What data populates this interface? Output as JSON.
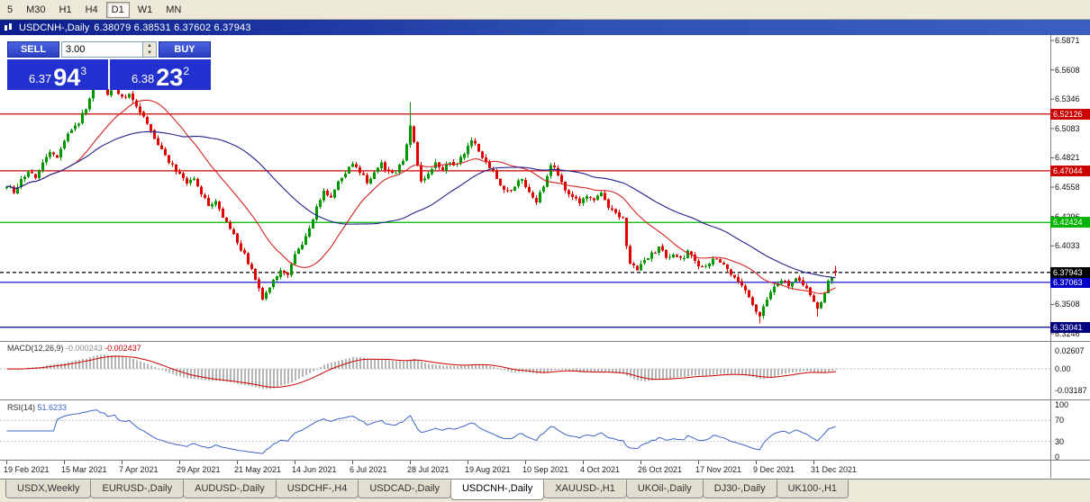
{
  "toolbar": {
    "timeframes": [
      "5",
      "M30",
      "H1",
      "H4",
      "D1",
      "W1",
      "MN"
    ],
    "active": "D1"
  },
  "chart_window": {
    "title": "USDCNH-,Daily",
    "ohlc": "6.38079 6.38531 6.37602 6.37943"
  },
  "trade_panel": {
    "sell_label": "SELL",
    "buy_label": "BUY",
    "volume": "3.00",
    "sell_price_head": "6.37",
    "sell_price_big": "94",
    "sell_price_sup": "3",
    "buy_price_head": "6.38",
    "buy_price_big": "23",
    "buy_price_sup": "2"
  },
  "indicators": {
    "macd": {
      "title": "MACD(12,26,9)",
      "value_main": "-0.000243",
      "value_signal": "-0.002437",
      "axis": [
        {
          "label": "0.02607",
          "value": 0.02607
        },
        {
          "label": "0.00",
          "value": 0
        },
        {
          "label": "-0.03187",
          "value": -0.03187
        }
      ]
    },
    "rsi": {
      "title": "RSI(14)",
      "value": "51.6233",
      "axis": [
        {
          "label": "100",
          "value": 100
        },
        {
          "label": "70",
          "value": 70
        },
        {
          "label": "30",
          "value": 30
        },
        {
          "label": "0",
          "value": 0
        }
      ],
      "levels": [
        70,
        30
      ]
    }
  },
  "chart_data": {
    "type": "candlestick",
    "symbol": "USDCNH-",
    "timeframe": "Daily",
    "bar_count": 231,
    "y_axis": [
      6.5871,
      6.5608,
      6.5346,
      6.5083,
      6.4821,
      6.4558,
      6.4296,
      6.4033,
      6.3771,
      6.3508,
      6.3246
    ],
    "x_axis": [
      {
        "bar": 0,
        "label": "19 Feb 2021"
      },
      {
        "bar": 16,
        "label": "15 Mar 2021"
      },
      {
        "bar": 32,
        "label": "7 Apr 2021"
      },
      {
        "bar": 48,
        "label": "29 Apr 2021"
      },
      {
        "bar": 64,
        "label": "21 May 2021"
      },
      {
        "bar": 80,
        "label": "14 Jun 2021"
      },
      {
        "bar": 96,
        "label": "6 Jul 2021"
      },
      {
        "bar": 112,
        "label": "28 Jul 2021"
      },
      {
        "bar": 128,
        "label": "19 Aug 2021"
      },
      {
        "bar": 144,
        "label": "10 Sep 2021"
      },
      {
        "bar": 160,
        "label": "4 Oct 2021"
      },
      {
        "bar": 176,
        "label": "26 Oct 2021"
      },
      {
        "bar": 192,
        "label": "17 Nov 2021"
      },
      {
        "bar": 208,
        "label": "9 Dec 2021"
      },
      {
        "bar": 224,
        "label": "31 Dec 2021"
      }
    ],
    "levels": [
      {
        "price": 6.52126,
        "label": "6.52126",
        "color": "#cc0000",
        "style": "solid"
      },
      {
        "price": 6.47044,
        "label": "6.47044",
        "color": "#cc0000",
        "style": "solid"
      },
      {
        "price": 6.42424,
        "label": "6.42424",
        "color": "#00b400",
        "style": "solid"
      },
      {
        "price": 6.37063,
        "label": "6.37063",
        "color": "#0000c8",
        "style": "solid"
      },
      {
        "price": 6.33041,
        "label": "6.33041",
        "color": "#000080",
        "style": "solid"
      },
      {
        "price": 6.37943,
        "label": "6.37943",
        "color": "#000000",
        "style": "dashed",
        "current": true
      }
    ],
    "price_path": [
      [
        0,
        6.458
      ],
      [
        2,
        6.451
      ],
      [
        4,
        6.462
      ],
      [
        6,
        6.469
      ],
      [
        8,
        6.465
      ],
      [
        10,
        6.477
      ],
      [
        12,
        6.488
      ],
      [
        14,
        6.483
      ],
      [
        16,
        6.497
      ],
      [
        18,
        6.509
      ],
      [
        20,
        6.514
      ],
      [
        22,
        6.527
      ],
      [
        24,
        6.543
      ],
      [
        25,
        6.55
      ],
      [
        26,
        6.545
      ],
      [
        28,
        6.54
      ],
      [
        30,
        6.547
      ],
      [
        32,
        6.535
      ],
      [
        34,
        6.541
      ],
      [
        36,
        6.528
      ],
      [
        38,
        6.518
      ],
      [
        40,
        6.505
      ],
      [
        42,
        6.495
      ],
      [
        44,
        6.483
      ],
      [
        46,
        6.475
      ],
      [
        48,
        6.467
      ],
      [
        50,
        6.459
      ],
      [
        52,
        6.464
      ],
      [
        54,
        6.45
      ],
      [
        56,
        6.44
      ],
      [
        58,
        6.445
      ],
      [
        60,
        6.43
      ],
      [
        62,
        6.418
      ],
      [
        64,
        6.406
      ],
      [
        66,
        6.395
      ],
      [
        68,
        6.383
      ],
      [
        70,
        6.366
      ],
      [
        71,
        6.357
      ],
      [
        72,
        6.362
      ],
      [
        74,
        6.371
      ],
      [
        76,
        6.383
      ],
      [
        78,
        6.377
      ],
      [
        80,
        6.396
      ],
      [
        82,
        6.405
      ],
      [
        84,
        6.418
      ],
      [
        86,
        6.438
      ],
      [
        88,
        6.452
      ],
      [
        90,
        6.446
      ],
      [
        92,
        6.462
      ],
      [
        94,
        6.468
      ],
      [
        96,
        6.477
      ],
      [
        98,
        6.469
      ],
      [
        100,
        6.461
      ],
      [
        102,
        6.469
      ],
      [
        104,
        6.476
      ],
      [
        106,
        6.468
      ],
      [
        108,
        6.468
      ],
      [
        110,
        6.48
      ],
      [
        111,
        6.492
      ],
      [
        112,
        6.512
      ],
      [
        113,
        6.497
      ],
      [
        114,
        6.477
      ],
      [
        115,
        6.461
      ],
      [
        117,
        6.469
      ],
      [
        119,
        6.477
      ],
      [
        121,
        6.471
      ],
      [
        123,
        6.479
      ],
      [
        125,
        6.475
      ],
      [
        127,
        6.487
      ],
      [
        129,
        6.499
      ],
      [
        131,
        6.489
      ],
      [
        133,
        6.477
      ],
      [
        135,
        6.469
      ],
      [
        137,
        6.459
      ],
      [
        139,
        6.451
      ],
      [
        141,
        6.457
      ],
      [
        143,
        6.464
      ],
      [
        145,
        6.451
      ],
      [
        147,
        6.444
      ],
      [
        149,
        6.457
      ],
      [
        151,
        6.477
      ],
      [
        153,
        6.467
      ],
      [
        155,
        6.454
      ],
      [
        157,
        6.447
      ],
      [
        159,
        6.441
      ],
      [
        161,
        6.447
      ],
      [
        163,
        6.444
      ],
      [
        165,
        6.451
      ],
      [
        167,
        6.439
      ],
      [
        169,
        6.431
      ],
      [
        171,
        6.427
      ],
      [
        172,
        6.404
      ],
      [
        173,
        6.387
      ],
      [
        175,
        6.383
      ],
      [
        177,
        6.391
      ],
      [
        179,
        6.397
      ],
      [
        181,
        6.401
      ],
      [
        183,
        6.394
      ],
      [
        185,
        6.397
      ],
      [
        187,
        6.391
      ],
      [
        189,
        6.397
      ],
      [
        191,
        6.389
      ],
      [
        193,
        6.383
      ],
      [
        195,
        6.389
      ],
      [
        197,
        6.393
      ],
      [
        199,
        6.385
      ],
      [
        201,
        6.379
      ],
      [
        203,
        6.371
      ],
      [
        205,
        6.364
      ],
      [
        207,
        6.351
      ],
      [
        209,
        6.341
      ],
      [
        211,
        6.357
      ],
      [
        213,
        6.369
      ],
      [
        215,
        6.373
      ],
      [
        217,
        6.369
      ],
      [
        219,
        6.373
      ],
      [
        221,
        6.367
      ],
      [
        223,
        6.361
      ],
      [
        224,
        6.354
      ],
      [
        225,
        6.347
      ],
      [
        226,
        6.351
      ],
      [
        227,
        6.361
      ],
      [
        228,
        6.371
      ],
      [
        229,
        6.376
      ],
      [
        230,
        6.37943
      ]
    ],
    "special_bars": {
      "25": {
        "h": 6.558
      },
      "112": {
        "h": 6.532
      },
      "172": {
        "h": 6.428
      },
      "209": {
        "l": 6.334
      },
      "225": {
        "l": 6.34
      },
      "230": {
        "o": 6.38079,
        "h": 6.38531,
        "l": 6.37602,
        "c": 6.37943
      }
    },
    "moving_averages": [
      {
        "period": 20,
        "color": "#d42222"
      },
      {
        "period": 50,
        "color": "#20208e"
      }
    ],
    "colors": {
      "bull": "#009600",
      "bear": "#e00000",
      "macd_hist": "#b4b4b4",
      "macd_signal": "#cc0000",
      "rsi_line": "#3c64c8"
    }
  },
  "tabs": [
    {
      "label": "USDX,Weekly",
      "active": false
    },
    {
      "label": "EURUSD-,Daily",
      "active": false
    },
    {
      "label": "AUDUSD-,Daily",
      "active": false
    },
    {
      "label": "USDCHF-,H4",
      "active": false
    },
    {
      "label": "USDCAD-,Daily",
      "active": false
    },
    {
      "label": "USDCNH-,Daily",
      "active": true
    },
    {
      "label": "XAUUSD-,H1",
      "active": false
    },
    {
      "label": "UKOil-,Daily",
      "active": false
    },
    {
      "label": "DJ30-,Daily",
      "active": false
    },
    {
      "label": "UK100-,H1",
      "active": false
    }
  ]
}
